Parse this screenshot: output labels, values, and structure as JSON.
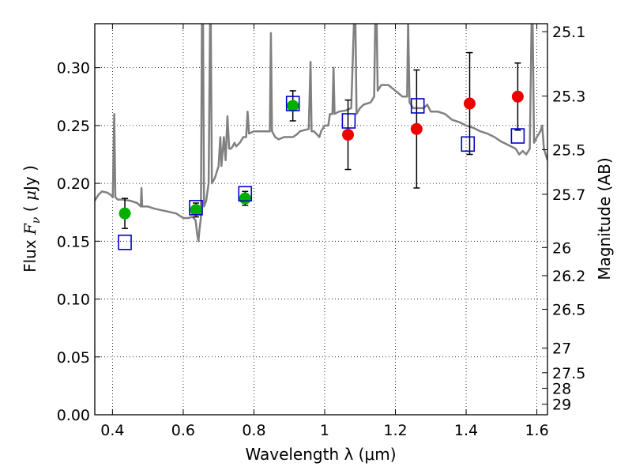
{
  "chart_data": {
    "type": "scatter",
    "xlabel": "Wavelength  λ (μm)",
    "ylabel": "Flux  F_ν ( μJy )",
    "ylabel_right": "Magnitude (AB)",
    "xlim": [
      0.35,
      1.63
    ],
    "ylim": [
      0.0,
      0.338
    ],
    "x_ticks": [
      "0.4",
      "0.6",
      "0.8",
      "1",
      "1.2",
      "1.4",
      "1.6"
    ],
    "x_tick_values": [
      0.4,
      0.6,
      0.8,
      1.0,
      1.2,
      1.4,
      1.6
    ],
    "y_ticks": [
      "0.00",
      "0.05",
      "0.10",
      "0.15",
      "0.20",
      "0.25",
      "0.30"
    ],
    "y_tick_values": [
      0.0,
      0.05,
      0.1,
      0.15,
      0.2,
      0.25,
      0.3
    ],
    "right_ticks": [
      {
        "label": "25.1",
        "mag": 25.1
      },
      {
        "label": "25.3",
        "mag": 25.3
      },
      {
        "label": "25.5",
        "mag": 25.5
      },
      {
        "label": "25.7",
        "mag": 25.7
      },
      {
        "label": "26",
        "mag": 26.0
      },
      {
        "label": "26.2",
        "mag": 26.2
      },
      {
        "label": "26.5",
        "mag": 26.5
      },
      {
        "label": "27",
        "mag": 27.0
      },
      {
        "label": "27.5",
        "mag": 27.5
      },
      {
        "label": "28",
        "mag": 28.0
      },
      {
        "label": "29",
        "mag": 29.0
      }
    ],
    "grid": true,
    "series": [
      {
        "marker": "circle",
        "color": "#00b000",
        "points": [
          {
            "x": 0.435,
            "y": 0.174,
            "err": 0.013
          },
          {
            "x": 0.636,
            "y": 0.177,
            "err": 0.006
          },
          {
            "x": 0.775,
            "y": 0.187,
            "err": 0.006
          },
          {
            "x": 0.91,
            "y": 0.267,
            "err": 0.013
          }
        ]
      },
      {
        "marker": "circle",
        "color": "#ee0000",
        "points": [
          {
            "x": 1.066,
            "y": 0.242,
            "err": 0.03
          },
          {
            "x": 1.26,
            "y": 0.247,
            "err": 0.051
          },
          {
            "x": 1.41,
            "y": 0.269,
            "err": 0.044
          },
          {
            "x": 1.546,
            "y": 0.275,
            "err": 0.029
          }
        ]
      },
      {
        "marker": "square",
        "color": "#0000cc",
        "points": [
          {
            "x": 0.435,
            "y": 0.149
          },
          {
            "x": 0.636,
            "y": 0.179
          },
          {
            "x": 0.775,
            "y": 0.191
          },
          {
            "x": 0.91,
            "y": 0.269
          },
          {
            "x": 1.068,
            "y": 0.254
          },
          {
            "x": 1.263,
            "y": 0.267
          },
          {
            "x": 1.405,
            "y": 0.234
          },
          {
            "x": 1.546,
            "y": 0.241
          }
        ]
      },
      {
        "type": "line",
        "color": "#808080",
        "points": [
          [
            0.35,
            0.185
          ],
          [
            0.36,
            0.19
          ],
          [
            0.37,
            0.193
          ],
          [
            0.385,
            0.192
          ],
          [
            0.395,
            0.19
          ],
          [
            0.401,
            0.188
          ],
          [
            0.405,
            0.26
          ],
          [
            0.408,
            0.188
          ],
          [
            0.415,
            0.186
          ],
          [
            0.43,
            0.186
          ],
          [
            0.45,
            0.185
          ],
          [
            0.47,
            0.183
          ],
          [
            0.48,
            0.18
          ],
          [
            0.482,
            0.196
          ],
          [
            0.484,
            0.18
          ],
          [
            0.5,
            0.18
          ],
          [
            0.52,
            0.178
          ],
          [
            0.55,
            0.176
          ],
          [
            0.58,
            0.174
          ],
          [
            0.6,
            0.17
          ],
          [
            0.615,
            0.17
          ],
          [
            0.625,
            0.171
          ],
          [
            0.63,
            0.17
          ],
          [
            0.635,
            0.168
          ],
          [
            0.64,
            0.155
          ],
          [
            0.643,
            0.15
          ],
          [
            0.646,
            0.16
          ],
          [
            0.65,
            0.17
          ],
          [
            0.653,
            0.34
          ],
          [
            0.656,
            0.34
          ],
          [
            0.659,
            0.18
          ],
          [
            0.665,
            0.185
          ],
          [
            0.672,
            0.2
          ],
          [
            0.676,
            0.34
          ],
          [
            0.678,
            0.34
          ],
          [
            0.681,
            0.2
          ],
          [
            0.69,
            0.205
          ],
          [
            0.7,
            0.215
          ],
          [
            0.705,
            0.24
          ],
          [
            0.708,
            0.215
          ],
          [
            0.715,
            0.24
          ],
          [
            0.72,
            0.22
          ],
          [
            0.725,
            0.258
          ],
          [
            0.73,
            0.23
          ],
          [
            0.735,
            0.23
          ],
          [
            0.74,
            0.232
          ],
          [
            0.745,
            0.235
          ],
          [
            0.75,
            0.232
          ],
          [
            0.76,
            0.235
          ],
          [
            0.77,
            0.24
          ],
          [
            0.778,
            0.24
          ],
          [
            0.782,
            0.262
          ],
          [
            0.786,
            0.243
          ],
          [
            0.8,
            0.245
          ],
          [
            0.83,
            0.245
          ],
          [
            0.845,
            0.245
          ],
          [
            0.848,
            0.33
          ],
          [
            0.851,
            0.245
          ],
          [
            0.86,
            0.24
          ],
          [
            0.87,
            0.238
          ],
          [
            0.885,
            0.24
          ],
          [
            0.9,
            0.24
          ],
          [
            0.91,
            0.24
          ],
          [
            0.92,
            0.242
          ],
          [
            0.93,
            0.245
          ],
          [
            0.955,
            0.247
          ],
          [
            0.96,
            0.305
          ],
          [
            0.963,
            0.245
          ],
          [
            0.97,
            0.245
          ],
          [
            0.985,
            0.24
          ],
          [
            0.99,
            0.245
          ],
          [
            1.0,
            0.25
          ],
          [
            1.01,
            0.25
          ],
          [
            1.015,
            0.26
          ],
          [
            1.022,
            0.26
          ],
          [
            1.025,
            0.3
          ],
          [
            1.028,
            0.26
          ],
          [
            1.04,
            0.262
          ],
          [
            1.06,
            0.263
          ],
          [
            1.075,
            0.265
          ],
          [
            1.083,
            0.34
          ],
          [
            1.087,
            0.34
          ],
          [
            1.09,
            0.26
          ],
          [
            1.1,
            0.265
          ],
          [
            1.11,
            0.268
          ],
          [
            1.13,
            0.27
          ],
          [
            1.14,
            0.275
          ],
          [
            1.143,
            0.34
          ],
          [
            1.147,
            0.34
          ],
          [
            1.15,
            0.28
          ],
          [
            1.16,
            0.285
          ],
          [
            1.18,
            0.285
          ],
          [
            1.2,
            0.28
          ],
          [
            1.22,
            0.275
          ],
          [
            1.233,
            0.275
          ],
          [
            1.236,
            0.34
          ],
          [
            1.24,
            0.27
          ],
          [
            1.25,
            0.265
          ],
          [
            1.28,
            0.265
          ],
          [
            1.29,
            0.268
          ],
          [
            1.3,
            0.262
          ],
          [
            1.32,
            0.262
          ],
          [
            1.34,
            0.26
          ],
          [
            1.36,
            0.255
          ],
          [
            1.38,
            0.253
          ],
          [
            1.4,
            0.25
          ],
          [
            1.42,
            0.248
          ],
          [
            1.44,
            0.245
          ],
          [
            1.46,
            0.243
          ],
          [
            1.48,
            0.24
          ],
          [
            1.5,
            0.236
          ],
          [
            1.52,
            0.233
          ],
          [
            1.54,
            0.23
          ],
          [
            1.55,
            0.225
          ],
          [
            1.56,
            0.228
          ],
          [
            1.57,
            0.225
          ],
          [
            1.58,
            0.23
          ],
          [
            1.585,
            0.34
          ],
          [
            1.588,
            0.34
          ],
          [
            1.592,
            0.235
          ],
          [
            1.6,
            0.24
          ],
          [
            1.61,
            0.245
          ],
          [
            1.615,
            0.25
          ],
          [
            1.62,
            0.23
          ],
          [
            1.63,
            0.22
          ]
        ]
      }
    ]
  }
}
